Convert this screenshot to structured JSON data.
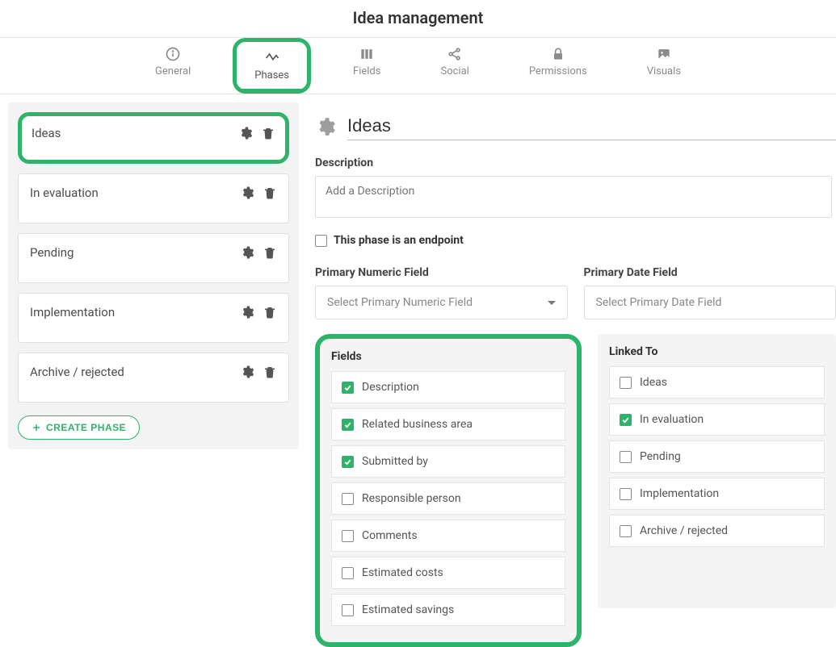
{
  "page": {
    "title": "Idea management"
  },
  "tabs": {
    "general": "General",
    "phases": "Phases",
    "fields": "Fields",
    "social": "Social",
    "permissions": "Permissions",
    "visuals": "Visuals",
    "active": "phases"
  },
  "sidebar": {
    "items": [
      {
        "label": "Ideas",
        "selected": true
      },
      {
        "label": "In evaluation"
      },
      {
        "label": "Pending"
      },
      {
        "label": "Implementation"
      },
      {
        "label": "Archive / rejected"
      }
    ],
    "create_label": "CREATE PHASE"
  },
  "editor": {
    "title_value": "Ideas",
    "description_label": "Description",
    "description_placeholder": "Add a Description",
    "endpoint_label": "This phase is an endpoint",
    "endpoint_checked": false,
    "primary_numeric_label": "Primary Numeric Field",
    "primary_numeric_placeholder": "Select Primary Numeric Field",
    "primary_date_label": "Primary Date Field",
    "primary_date_placeholder": "Select Primary Date Field"
  },
  "fields_panel": {
    "title": "Fields",
    "items": [
      {
        "label": "Description",
        "checked": true
      },
      {
        "label": "Related business area",
        "checked": true
      },
      {
        "label": "Submitted by",
        "checked": true
      },
      {
        "label": "Responsible person",
        "checked": false
      },
      {
        "label": "Comments",
        "checked": false
      },
      {
        "label": "Estimated costs",
        "checked": false
      },
      {
        "label": "Estimated savings",
        "checked": false
      }
    ]
  },
  "linked_panel": {
    "title": "Linked To",
    "items": [
      {
        "label": "Ideas",
        "checked": false
      },
      {
        "label": "In evaluation",
        "checked": true
      },
      {
        "label": "Pending",
        "checked": false
      },
      {
        "label": "Implementation",
        "checked": false
      },
      {
        "label": "Archive / rejected",
        "checked": false
      }
    ]
  },
  "colors": {
    "accent": "#2db36a",
    "muted": "#8a8a8a"
  }
}
